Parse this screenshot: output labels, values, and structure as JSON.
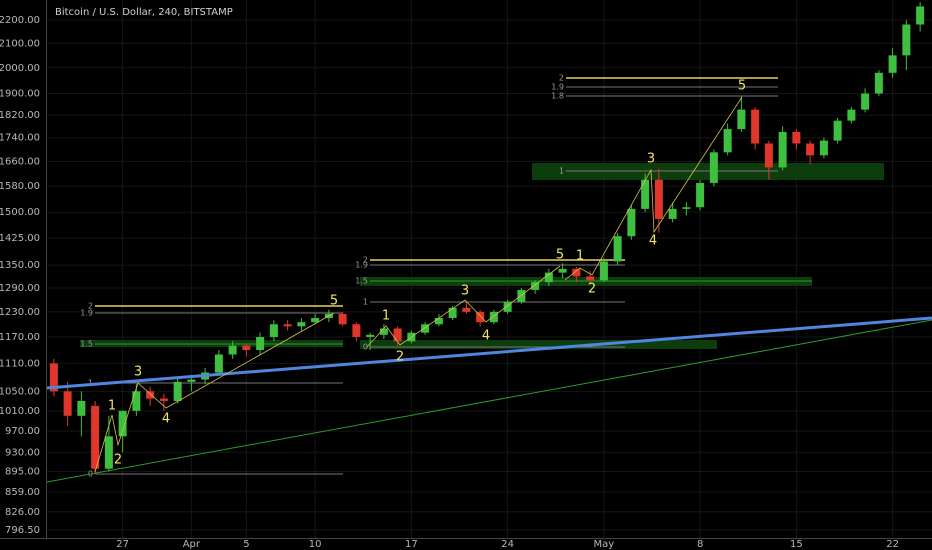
{
  "chart_data": {
    "type": "candlestick",
    "title": "Bitcoin / U.S. Dollar, 240, BITSTAMP",
    "categories": [
      null,
      null,
      null,
      null,
      null,
      "27",
      null,
      null,
      null,
      null,
      "Apr",
      null,
      null,
      null,
      "5",
      null,
      null,
      null,
      null,
      "10",
      null,
      null,
      null,
      null,
      null,
      null,
      "17",
      null,
      null,
      null,
      null,
      null,
      null,
      "24",
      null,
      null,
      null,
      null,
      null,
      null,
      "May",
      null,
      null,
      null,
      null,
      null,
      null,
      "8",
      null,
      null,
      null,
      null,
      null,
      null,
      "15",
      null,
      null,
      null,
      null,
      null,
      null,
      "22",
      null,
      null
    ],
    "open": [
      1110,
      1050,
      1000,
      1020,
      900,
      960,
      1010,
      1050,
      1035,
      1030,
      1070,
      1075,
      1090,
      1130,
      1150,
      1140,
      1170,
      1200,
      1195,
      1205,
      1215,
      1225,
      1200,
      1170,
      1175,
      1190,
      1160,
      1180,
      1200,
      1215,
      1240,
      1230,
      1205,
      1230,
      1255,
      1285,
      1305,
      1330,
      1340,
      1320,
      1310,
      1360,
      1430,
      1510,
      1600,
      1480,
      1510,
      1515,
      1590,
      1690,
      1770,
      1840,
      1720,
      1640,
      1760,
      1720,
      1680,
      1730,
      1800,
      1840,
      1900,
      1980,
      2050,
      2180
    ],
    "high": [
      1120,
      1070,
      1050,
      1030,
      1000,
      1010,
      1065,
      1060,
      1045,
      1080,
      1085,
      1100,
      1140,
      1160,
      1155,
      1180,
      1210,
      1210,
      1215,
      1225,
      1235,
      1230,
      1205,
      1180,
      1200,
      1195,
      1185,
      1205,
      1225,
      1245,
      1255,
      1235,
      1235,
      1260,
      1290,
      1310,
      1340,
      1355,
      1345,
      1335,
      1370,
      1440,
      1520,
      1620,
      1635,
      1530,
      1530,
      1600,
      1700,
      1790,
      1890,
      1850,
      1730,
      1780,
      1770,
      1730,
      1740,
      1810,
      1850,
      1920,
      1990,
      2080,
      2200,
      2280
    ],
    "low": [
      1040,
      980,
      960,
      890,
      895,
      930,
      1000,
      1020,
      1010,
      1025,
      1050,
      1065,
      1085,
      1120,
      1125,
      1130,
      1160,
      1185,
      1185,
      1200,
      1205,
      1195,
      1160,
      1140,
      1165,
      1150,
      1155,
      1175,
      1195,
      1210,
      1225,
      1195,
      1200,
      1225,
      1250,
      1275,
      1295,
      1315,
      1305,
      1300,
      1305,
      1350,
      1420,
      1500,
      1440,
      1470,
      1490,
      1505,
      1580,
      1680,
      1760,
      1700,
      1600,
      1630,
      1700,
      1650,
      1670,
      1720,
      1790,
      1830,
      1890,
      1960,
      1990,
      2150
    ],
    "close": [
      1050,
      1000,
      1030,
      900,
      960,
      1010,
      1050,
      1035,
      1030,
      1070,
      1075,
      1090,
      1130,
      1150,
      1140,
      1170,
      1200,
      1195,
      1205,
      1215,
      1225,
      1200,
      1170,
      1175,
      1190,
      1160,
      1180,
      1200,
      1215,
      1240,
      1230,
      1205,
      1230,
      1255,
      1285,
      1305,
      1330,
      1340,
      1320,
      1310,
      1360,
      1430,
      1510,
      1600,
      1480,
      1510,
      1515,
      1590,
      1690,
      1770,
      1840,
      1720,
      1640,
      1760,
      1720,
      1680,
      1730,
      1800,
      1840,
      1900,
      1980,
      2050,
      2180,
      2260
    ],
    "up_color": "#3fbf3f",
    "down_color": "#e0362c",
    "log_scale": true,
    "grid": true,
    "ylim": [
      784,
      2289
    ],
    "yticks": [
      {
        "value": 796.5,
        "label": "796.50"
      },
      {
        "value": 826,
        "label": "826.00"
      },
      {
        "value": 859,
        "label": "859.00"
      },
      {
        "value": 895,
        "label": "895.00"
      },
      {
        "value": 930,
        "label": "930.00"
      },
      {
        "value": 970,
        "label": "970.00"
      },
      {
        "value": 1010,
        "label": "1010.00"
      },
      {
        "value": 1050,
        "label": "1050.00"
      },
      {
        "value": 1110,
        "label": "1110.00"
      },
      {
        "value": 1170,
        "label": "1170.00"
      },
      {
        "value": 1230,
        "label": "1230.00"
      },
      {
        "value": 1290,
        "label": "1290.00"
      },
      {
        "value": 1350,
        "label": "1350.00"
      },
      {
        "value": 1425,
        "label": "1425.00"
      },
      {
        "value": 1500,
        "label": "1500.00"
      },
      {
        "value": 1580,
        "label": "1580.00"
      },
      {
        "value": 1660,
        "label": "1660.00"
      },
      {
        "value": 1740,
        "label": "1740.00"
      },
      {
        "value": 1820,
        "label": "1820.00"
      },
      {
        "value": 1900,
        "label": "1900.00"
      },
      {
        "value": 2000,
        "label": "2000.00"
      },
      {
        "value": 2100,
        "label": "2100.00"
      },
      {
        "value": 2200,
        "label": "2200.00"
      }
    ],
    "wave_labels": [
      "1",
      "2",
      "3",
      "4",
      "5",
      "1",
      "2",
      "3",
      "4",
      "5",
      "1",
      "2",
      "3",
      "4",
      "5"
    ],
    "fib_labels": [
      "2",
      "1.9",
      "1.5",
      "1",
      "0",
      "2",
      "1.9",
      "1.5",
      "1",
      "0",
      "2",
      "1.9",
      "1.8",
      "1"
    ]
  }
}
